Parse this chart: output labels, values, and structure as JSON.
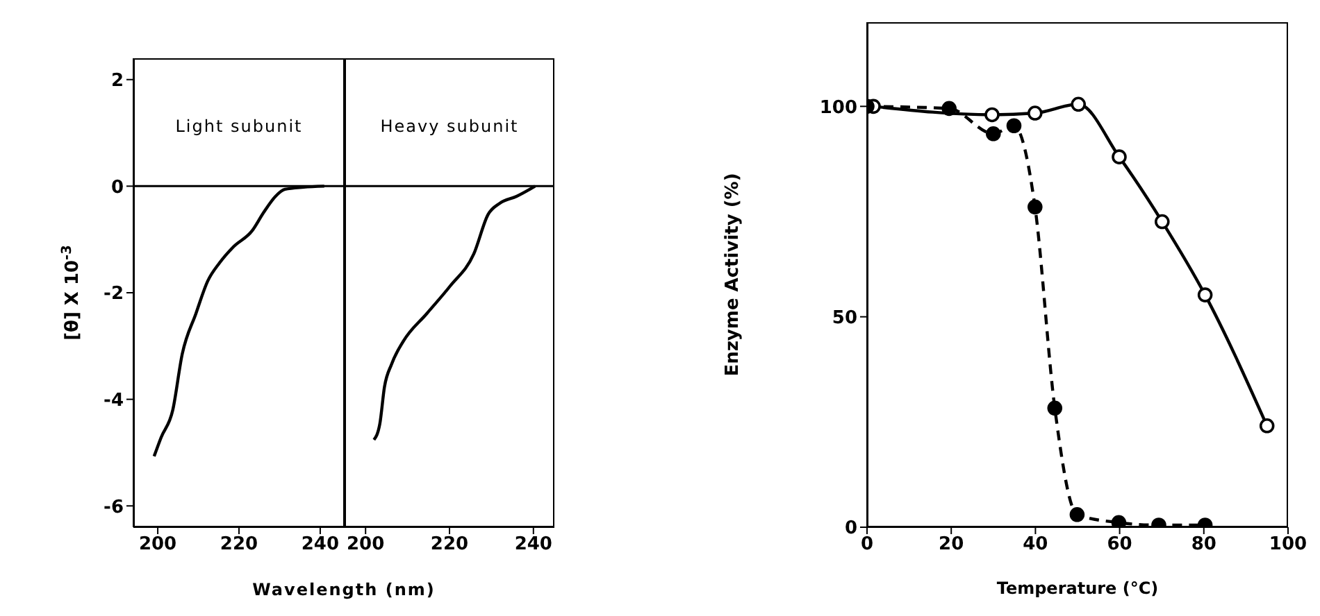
{
  "chart_data": [
    {
      "type": "line",
      "ylabel": "[θ] X 10$^{-3}$",
      "xlabel": "Wavelength (nm)",
      "annotations": [
        "Light subunit"
      ],
      "xlim": [
        194,
        246
      ],
      "xticks": [
        200,
        220,
        240
      ],
      "ylim": [
        -6.4,
        2.4
      ],
      "yticks": [
        -6,
        -4,
        -2,
        0,
        2
      ],
      "ref_lines": [
        {
          "axis": "y",
          "value": 0
        }
      ],
      "marker": "none",
      "line_style": "solid",
      "series": [
        {
          "color": "#000000",
          "x": [
            199.1,
            200.8,
            203.7,
            206,
            209.4,
            212.3,
            215.2,
            218.6,
            223.2,
            226.1,
            229,
            231.3,
            235.9,
            241
          ],
          "values": [
            -5.07,
            -4.72,
            -4.2,
            -3.16,
            -2.39,
            -1.78,
            -1.44,
            -1.14,
            -0.84,
            -0.49,
            -0.19,
            -0.06,
            -0.02,
            0
          ]
        }
      ]
    },
    {
      "type": "line",
      "annotations": [
        "Heavy subunit"
      ],
      "xlim": [
        195,
        245
      ],
      "xticks": [
        200,
        220,
        240
      ],
      "ylim": [
        -6.4,
        2.4
      ],
      "yticks": [
        -6,
        -4,
        -2,
        0,
        2
      ],
      "tick_labels": "x",
      "ref_lines": [
        {
          "axis": "y",
          "value": 0
        }
      ],
      "marker": "none",
      "line_style": "solid",
      "series": [
        {
          "color": "#000000",
          "x": [
            202,
            203.4,
            204.5,
            206.2,
            209,
            214.6,
            220.2,
            225.8,
            229.2,
            232,
            236,
            240.4
          ],
          "values": [
            -4.76,
            -4.46,
            -3.77,
            -3.34,
            -2.91,
            -2.39,
            -1.87,
            -1.27,
            -0.53,
            -0.32,
            -0.19,
            0
          ]
        }
      ]
    },
    {
      "type": "line",
      "xlabel": "Temperature (°C)",
      "ylabel": "Enzyme Activity (%)",
      "xlim": [
        0,
        100
      ],
      "xticks": [
        0,
        20,
        40,
        60,
        80,
        100
      ],
      "ylim": [
        0,
        120
      ],
      "yticks": [
        0,
        50,
        100
      ],
      "marker": "circle",
      "series": [
        {
          "color": "#000000",
          "line_style": "solid",
          "x": [
            1.5,
            29.7,
            39.9,
            50.2,
            59.9,
            70.1,
            80.3,
            95
          ],
          "values": [
            100,
            98,
            98.4,
            100.5,
            88,
            72.6,
            55.2,
            24.1
          ]
        },
        {
          "color": "#000000",
          "line_style": "dashed",
          "x": [
            0,
            19.5,
            30,
            34.9,
            39.9,
            44.6,
            49.9,
            59.8,
            69.3,
            80.3
          ],
          "values": [
            100,
            99.5,
            93.5,
            95.4,
            76.1,
            28.3,
            3,
            1.1,
            0.5,
            0.5
          ]
        }
      ]
    }
  ]
}
